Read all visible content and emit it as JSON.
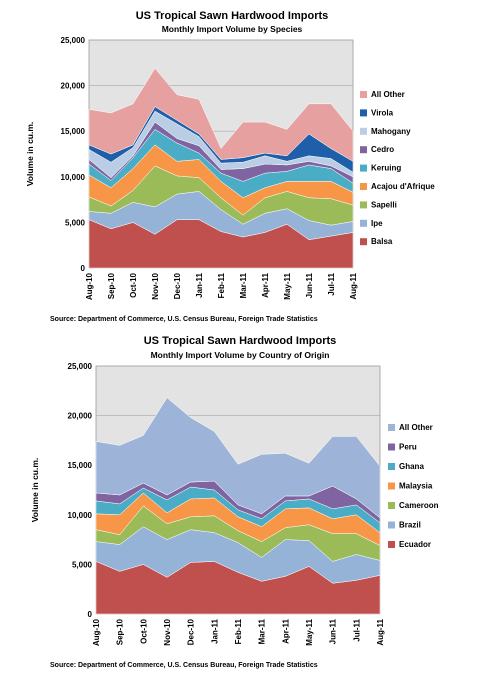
{
  "chart_data": [
    {
      "type": "area",
      "stacked": true,
      "title": "US Tropical Sawn Hardwood Imports",
      "subtitle": "Monthly Import Volume by Species",
      "ylabel": "Volume in cu.m.",
      "ylim": [
        0,
        25000
      ],
      "yticks": [
        "0",
        "5,000",
        "10,000",
        "15,000",
        "20,000",
        "25,000"
      ],
      "categories": [
        "Aug-10",
        "Sep-10",
        "Oct-10",
        "Nov-10",
        "Dec-10",
        "Jan-11",
        "Feb-11",
        "Mar-11",
        "Apr-11",
        "May-11",
        "Jun-11",
        "Jul-11",
        "Aug-11"
      ],
      "legend_position": "right",
      "source": "Source: Department of Commerce, U.S. Census Bureau, Foreign Trade Statistics",
      "series": [
        {
          "name": "Balsa",
          "color": "#c0504d",
          "values": [
            5300,
            4300,
            5000,
            3700,
            5300,
            5300,
            4000,
            3400,
            3900,
            4800,
            3100,
            3500,
            3900
          ]
        },
        {
          "name": "Ipe",
          "color": "#95b3d7",
          "values": [
            900,
            1700,
            2200,
            3000,
            2800,
            3100,
            2400,
            1400,
            2100,
            1700,
            2100,
            1200,
            1200
          ]
        },
        {
          "name": "Sapelli",
          "color": "#9bbb59",
          "values": [
            1600,
            800,
            1300,
            4500,
            2000,
            1500,
            1300,
            1000,
            1700,
            1900,
            2500,
            2900,
            1800
          ]
        },
        {
          "name": "Acajou d'Afrique",
          "color": "#f79646",
          "values": [
            2400,
            2000,
            2400,
            2300,
            1600,
            2000,
            1800,
            1900,
            1100,
            1100,
            1800,
            1900,
            1400
          ]
        },
        {
          "name": "Keruing",
          "color": "#4bacc6",
          "values": [
            1200,
            800,
            1200,
            1700,
            2000,
            700,
            900,
            1800,
            1600,
            1100,
            1800,
            1400,
            1000
          ]
        },
        {
          "name": "Cedro",
          "color": "#8064a2",
          "values": [
            500,
            300,
            200,
            800,
            500,
            800,
            400,
            1400,
            1000,
            700,
            400,
            300,
            700
          ]
        },
        {
          "name": "Mahogany",
          "color": "#b9cde5",
          "values": [
            1100,
            1700,
            900,
            1200,
            1600,
            1000,
            700,
            700,
            900,
            400,
            600,
            800,
            500
          ]
        },
        {
          "name": "Virola",
          "color": "#1f5ea8",
          "values": [
            500,
            900,
            300,
            500,
            400,
            300,
            400,
            500,
            300,
            600,
            2400,
            1100,
            1200
          ]
        },
        {
          "name": "All Other",
          "color": "#e6a0a0",
          "values": [
            3900,
            4500,
            4500,
            4200,
            2800,
            3800,
            1200,
            3900,
            3400,
            2900,
            3300,
            4900,
            3300
          ]
        }
      ]
    },
    {
      "type": "area",
      "stacked": true,
      "title": "US Tropical Sawn Hardwood Imports",
      "subtitle": "Monthly Import Volume by Country of Origin",
      "ylabel": "Volume in cu.m.",
      "ylim": [
        0,
        25000
      ],
      "yticks": [
        "0",
        "5,000",
        "10,000",
        "15,000",
        "20,000",
        "25,000"
      ],
      "categories": [
        "Aug-10",
        "Sep-10",
        "Oct-10",
        "Nov-10",
        "Dec-10",
        "Jan-11",
        "Feb-11",
        "Mar-11",
        "Apr-11",
        "May-11",
        "Jun-11",
        "Jul-11",
        "Aug-11"
      ],
      "legend_position": "right",
      "source": "Source: Department of Commerce, U.S. Census Bureau, Foreign Trade Statistics",
      "series": [
        {
          "name": "Ecuador",
          "color": "#c0504d",
          "values": [
            5300,
            4300,
            5000,
            3700,
            5200,
            5300,
            4200,
            3300,
            3800,
            4800,
            3100,
            3400,
            3900
          ]
        },
        {
          "name": "Brazil",
          "color": "#95b3d7",
          "values": [
            2000,
            2700,
            3800,
            3800,
            3300,
            2900,
            3000,
            2400,
            3700,
            2600,
            2200,
            2600,
            1500
          ]
        },
        {
          "name": "Cameroon",
          "color": "#9bbb59",
          "values": [
            1200,
            1000,
            2100,
            1600,
            1300,
            1700,
            1200,
            1600,
            1200,
            1600,
            2800,
            2100,
            1500
          ]
        },
        {
          "name": "Malaysia",
          "color": "#f79646",
          "values": [
            1600,
            2000,
            1300,
            1100,
            1800,
            1800,
            1400,
            1500,
            1900,
            1700,
            1500,
            1900,
            1300
          ]
        },
        {
          "name": "Ghana",
          "color": "#4bacc6",
          "values": [
            1300,
            1100,
            500,
            1300,
            1200,
            800,
            700,
            800,
            800,
            900,
            1000,
            1000,
            1000
          ]
        },
        {
          "name": "Peru",
          "color": "#8064a2",
          "values": [
            800,
            900,
            500,
            500,
            500,
            900,
            500,
            500,
            500,
            300,
            2300,
            600,
            500
          ]
        },
        {
          "name": "All Other",
          "color": "#9db4d8",
          "values": [
            5200,
            5000,
            4800,
            9800,
            6500,
            5000,
            4100,
            6000,
            4300,
            3300,
            5000,
            6300,
            5200
          ]
        }
      ]
    }
  ]
}
